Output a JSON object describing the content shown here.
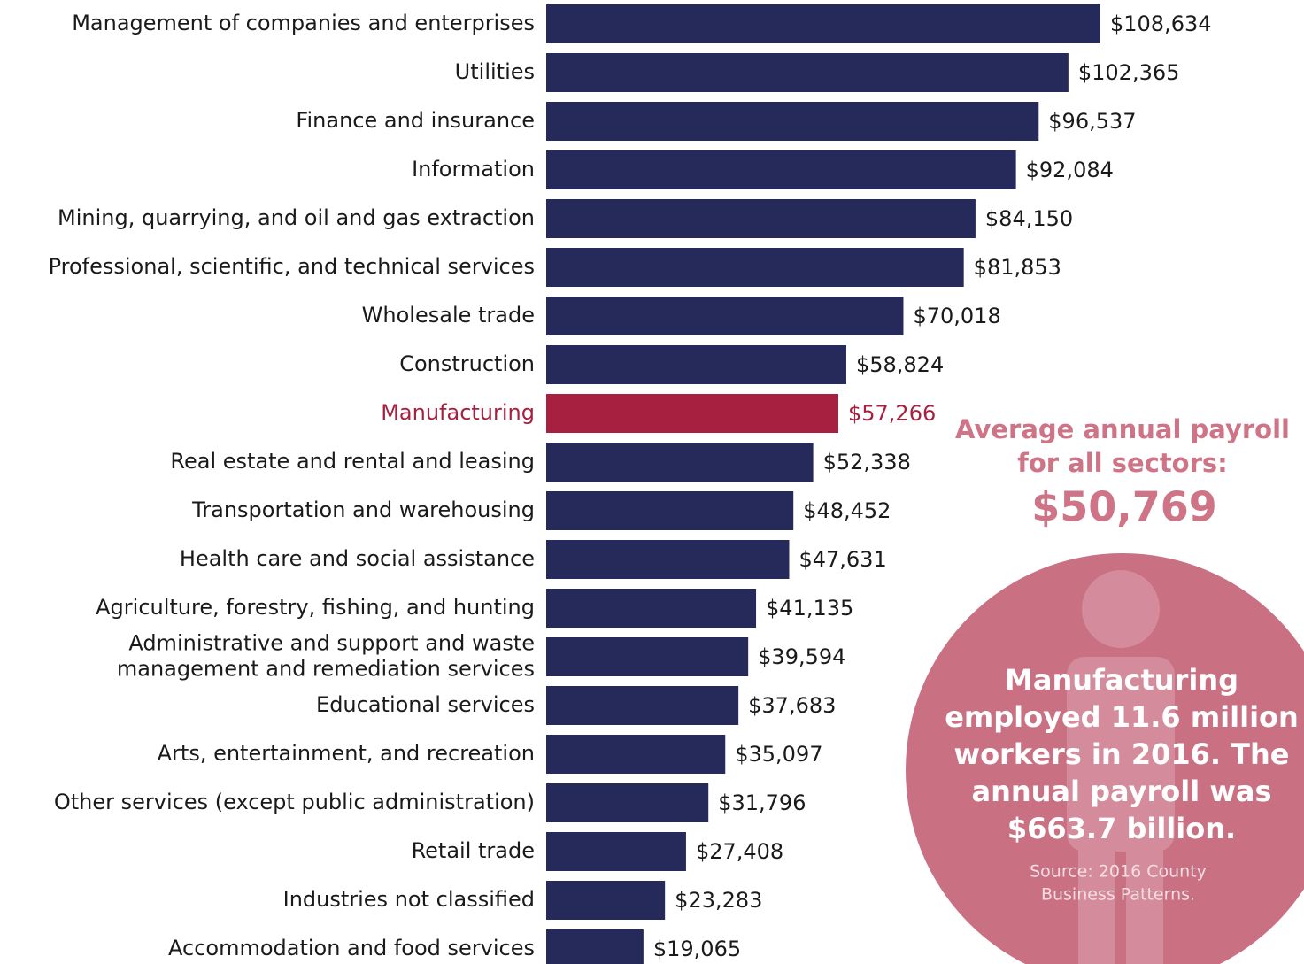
{
  "chart_data": {
    "type": "bar",
    "orientation": "horizontal",
    "categories": [
      "Management of companies and enterprises",
      "Utilities",
      "Finance and insurance",
      "Information",
      "Mining, quarrying, and oil and gas extraction",
      "Professional, scientific, and technical services",
      "Wholesale trade",
      "Construction",
      "Manufacturing",
      "Real estate and rental and leasing",
      "Transportation and warehousing",
      "Health care and social assistance",
      "Agriculture, forestry, fishing, and hunting",
      "Administrative and support and waste management and remediation services",
      "Educational services",
      "Arts, entertainment, and recreation",
      "Other services (except public administration)",
      "Retail trade",
      "Industries not classified",
      "Accommodation and food services"
    ],
    "values": [
      108634,
      102365,
      96537,
      92084,
      84150,
      81853,
      70018,
      58824,
      57266,
      52338,
      48452,
      47631,
      41135,
      39594,
      37683,
      35097,
      31796,
      27408,
      23283,
      19065
    ],
    "value_labels": [
      "$108,634",
      "$102,365",
      "$96,537",
      "$92,084",
      "$84,150",
      "$81,853",
      "$70,018",
      "$58,824",
      "$57,266",
      "$52,338",
      "$48,452",
      "$47,631",
      "$41,135",
      "$39,594",
      "$37,683",
      "$35,097",
      "$31,796",
      "$27,408",
      "$23,283",
      "$19,065"
    ],
    "colors": [
      "#252a5a",
      "#252a5a",
      "#252a5a",
      "#252a5a",
      "#252a5a",
      "#252a5a",
      "#252a5a",
      "#252a5a",
      "#a8203f",
      "#252a5a",
      "#252a5a",
      "#252a5a",
      "#252a5a",
      "#252a5a",
      "#252a5a",
      "#252a5a",
      "#252a5a",
      "#252a5a",
      "#252a5a",
      "#252a5a"
    ],
    "annotation": {
      "lines": [
        "Average annual payroll",
        "for all sectors:"
      ],
      "value": "$50,769"
    },
    "callout": {
      "lines": [
        "Manufacturing",
        "employed 11.6 million",
        "workers in 2016. The",
        "annual payroll was",
        "$663.7 billion."
      ],
      "source": [
        "Source: 2016 County",
        "Business Patterns."
      ]
    }
  }
}
